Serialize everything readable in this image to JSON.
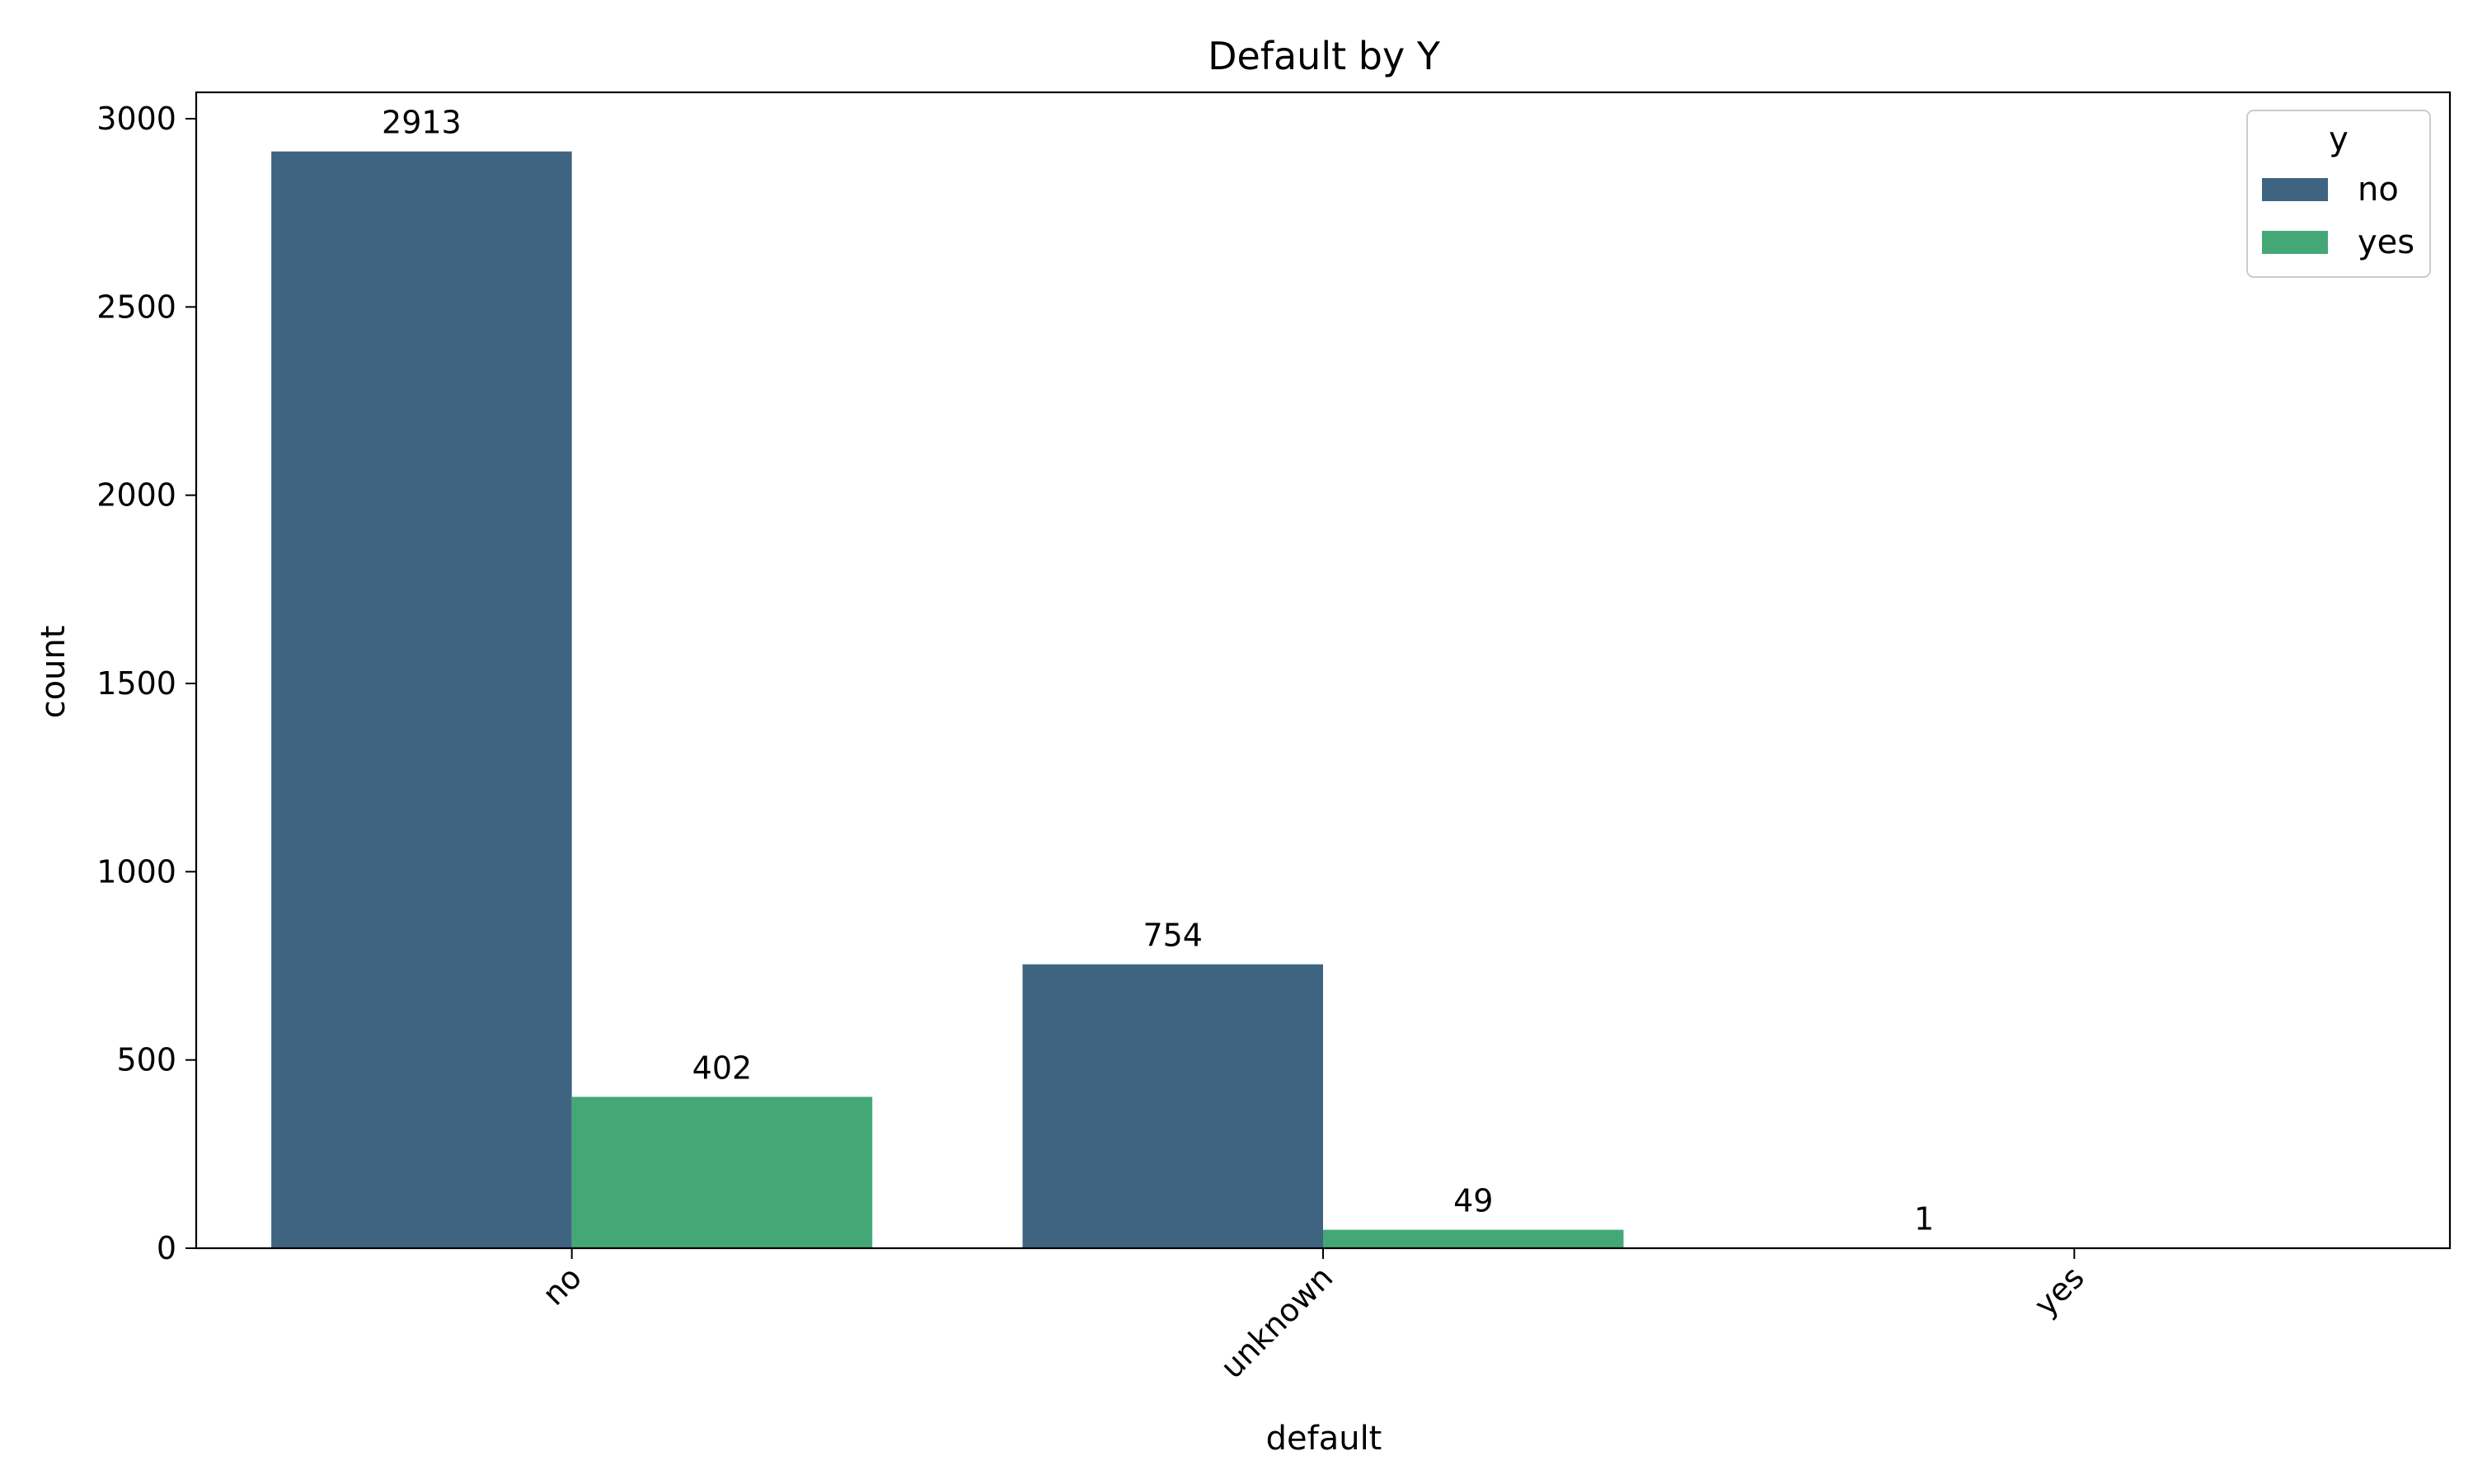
{
  "chart_data": {
    "type": "bar",
    "title": "Default by Y",
    "xlabel": "default",
    "ylabel": "count",
    "categories": [
      "no",
      "unknown",
      "yes"
    ],
    "series": [
      {
        "name": "no",
        "values": [
          2913,
          754,
          1
        ],
        "color": "#3e6482"
      },
      {
        "name": "yes",
        "values": [
          402,
          49,
          0
        ],
        "color": "#44a876"
      }
    ],
    "data_labels": [
      {
        "series": "no",
        "category": "no",
        "text": "2913"
      },
      {
        "series": "no",
        "category": "unknown",
        "text": "754"
      },
      {
        "series": "no",
        "category": "yes",
        "text": "1"
      },
      {
        "series": "yes",
        "category": "no",
        "text": "402"
      },
      {
        "series": "yes",
        "category": "unknown",
        "text": "49"
      }
    ],
    "ylim": [
      0,
      3070
    ],
    "yticks": [
      0,
      500,
      1000,
      1500,
      2000,
      2500,
      3000
    ],
    "grid": false,
    "legend": {
      "title": "y",
      "position": "top-right"
    }
  }
}
